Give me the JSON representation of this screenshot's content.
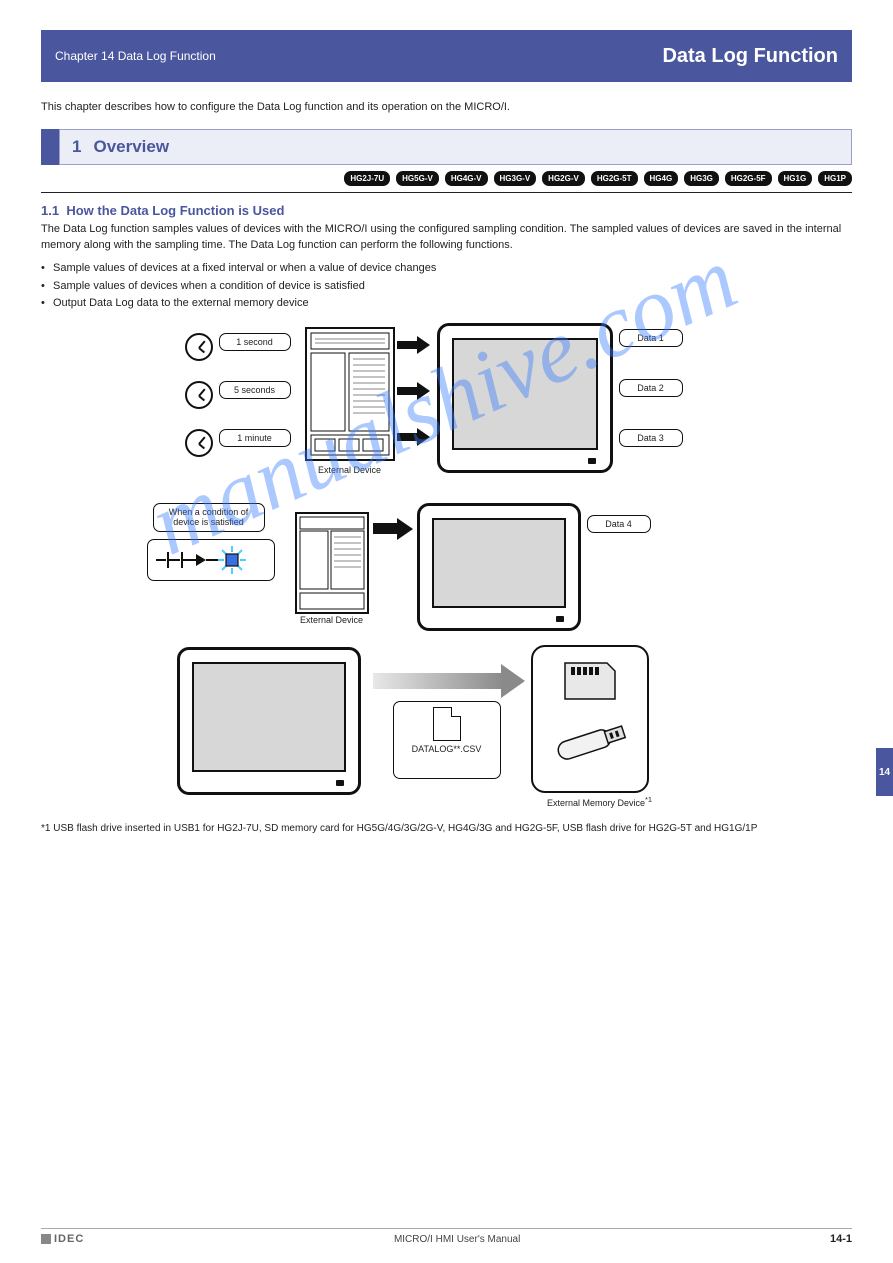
{
  "header": {
    "chapter_line": "Chapter 14    Data Log Function",
    "chapter_title": "Data Log Function"
  },
  "intro": "This chapter describes how to configure the Data Log function and its operation on the MICRO/I.",
  "section": {
    "num": "1",
    "title": "Overview",
    "chips": [
      "HG2J-7U",
      "HG5G-V",
      "HG4G-V",
      "HG3G-V",
      "HG2G-V",
      "HG2G-5T",
      "HG4G",
      "HG3G",
      "HG2G-5F",
      "HG1G",
      "HG1P"
    ],
    "sub_num": "1.1",
    "sub_title": "How the Data Log Function is Used",
    "sub_text": "The Data Log function samples values of devices with the MICRO/I using the configured sampling condition. The sampled values of devices are saved in the internal memory along with the sampling time. The Data Log function can perform the following functions.",
    "bullets": [
      "Sample values of devices at a fixed interval or when a value of device changes",
      "Sample values of devices when a condition of device is satisfied",
      "Output Data Log data to the external memory device"
    ],
    "bullet_marker": "•"
  },
  "fig1": {
    "label": "External Device",
    "clocks": [
      "1 second",
      "5 seconds",
      "1 minute"
    ],
    "right": [
      "Data 1",
      "Data 2",
      "Data 3"
    ]
  },
  "fig2": {
    "left_label": "When a condition of\\ndevice is satisfied",
    "plc_label": "External Device",
    "right_label": "Data 4"
  },
  "fig3": {
    "doc_label": "DATALOG**.CSV",
    "media1": "SD Memory Card",
    "media2": "USB Flash Drive"
  },
  "footnote": {
    "marker": "*1",
    "text": "USB flash drive inserted in USB1 for HG2J-7U, SD memory card for HG5G/4G/3G/2G-V, HG4G/3G and HG2G-5F, USB flash drive for HG2G-5T and HG1G/1P"
  },
  "ext_footnote_ref": "*1",
  "ext_mem_label": "External Memory Device",
  "sidebar_num": "14",
  "footer": {
    "brand": "IDEC",
    "doc": "MICRO/I HMI User's Manual",
    "page": "14-1"
  },
  "watermark": "manualshive.com",
  "colors": {
    "brand": "#4a569d",
    "chip_bg": "#111111",
    "inner_screen": "#d7d7d7"
  }
}
